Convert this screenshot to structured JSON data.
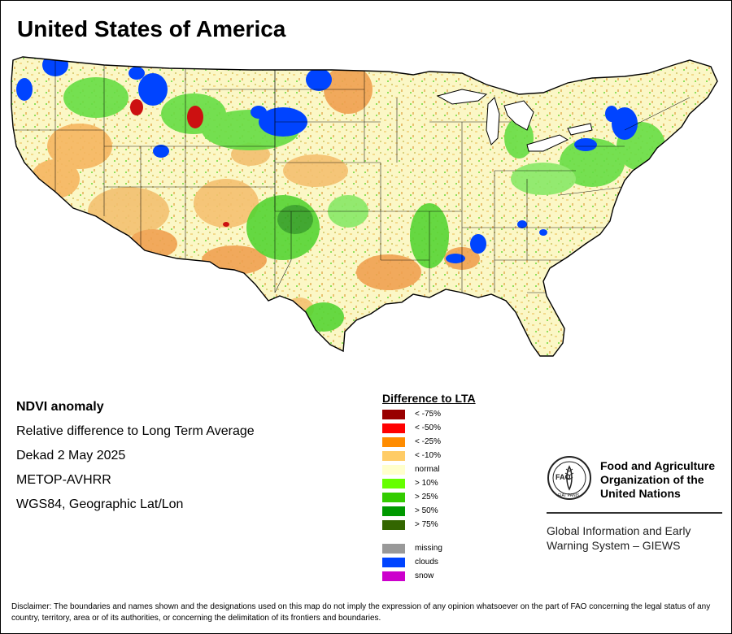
{
  "title": "United States of America",
  "info": {
    "product": "NDVI anomaly",
    "description": "Relative difference to Long Term Average",
    "period": "Dekad 2 May 2025",
    "sensor": "METOP-AVHRR",
    "projection": "WGS84, Geographic Lat/Lon"
  },
  "legend": {
    "title": "Difference to LTA",
    "classes": [
      {
        "label": "< -75%",
        "color": "#990000"
      },
      {
        "label": "< -50%",
        "color": "#ff0000"
      },
      {
        "label": "< -25%",
        "color": "#ff8c00"
      },
      {
        "label": "< -10%",
        "color": "#ffcc66"
      },
      {
        "label": "normal",
        "color": "#ffffcc"
      },
      {
        "label": "> 10%",
        "color": "#66ff00"
      },
      {
        "label": "> 25%",
        "color": "#33cc00"
      },
      {
        "label": "> 50%",
        "color": "#009900"
      },
      {
        "label": "> 75%",
        "color": "#336600"
      }
    ],
    "other": [
      {
        "label": "missing",
        "color": "#999999"
      },
      {
        "label": "clouds",
        "color": "#0044ff"
      },
      {
        "label": "snow",
        "color": "#cc00cc"
      }
    ]
  },
  "organization": {
    "name_line1": "Food and Agriculture",
    "name_line2": "Organization of the",
    "name_line3": "United Nations",
    "logo_text": "FAO",
    "logo_motto": "FIAT PANIS",
    "system_line1": "Global Information and Early",
    "system_line2": "Warning System – GIEWS"
  },
  "disclaimer": "Disclaimer: The boundaries and names shown and the designations used on this map do not imply the expression of any opinion whatsoever on the part of FAO concerning the legal status of any country, territory, area or of its authorities, or concerning the delimitation of its frontiers and boundaries."
}
